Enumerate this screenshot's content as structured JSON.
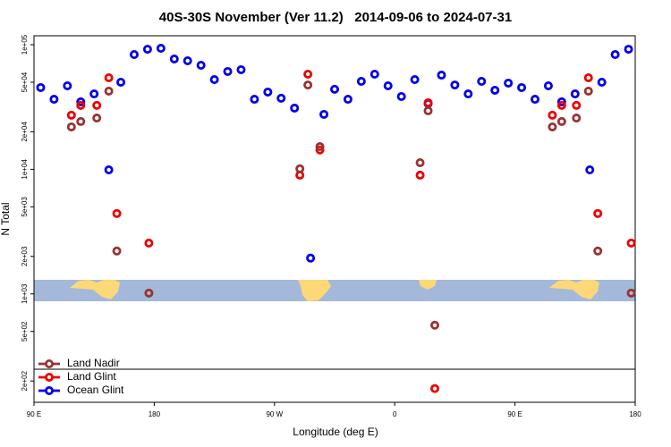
{
  "chart_data": {
    "type": "scatter",
    "title": "40S-30S November (Ver 11.2)   2014-09-06 to 2024-07-31",
    "x_label": "Longitude (deg E)",
    "y_label": "N Total",
    "log_y": true,
    "xlim": [
      90,
      540
    ],
    "xticks": [
      {
        "value": 90,
        "label": "90 E"
      },
      {
        "value": 180,
        "label": "180"
      },
      {
        "value": 270,
        "label": "90 W"
      },
      {
        "value": 360,
        "label": "0"
      },
      {
        "value": 450,
        "label": "90 E"
      },
      {
        "value": 540,
        "label": "180"
      }
    ],
    "ylim": [
      135,
      118000
    ],
    "yticks": [
      {
        "value": 100000,
        "label": "1e+05"
      },
      {
        "value": 50000,
        "label": "5e+04"
      },
      {
        "value": 20000,
        "label": "2e+04"
      },
      {
        "value": 10000,
        "label": "1e+04"
      },
      {
        "value": 5000,
        "label": "5e+03"
      },
      {
        "value": 2000,
        "label": "2e+03"
      },
      {
        "value": 1000,
        "label": "1e+03"
      },
      {
        "value": 500,
        "label": "5e+02"
      },
      {
        "value": 200,
        "label": "2e+02"
      }
    ],
    "legend": "bottom-left",
    "series": [
      {
        "name": "Land Nadir",
        "color": "#993333",
        "x": [
          118,
          125,
          137,
          146,
          152,
          176,
          289,
          295,
          304,
          379,
          385,
          390,
          478,
          485,
          496,
          505,
          512,
          537
        ],
        "values": [
          21900,
          24200,
          25800,
          42400,
          2210,
          1016,
          10100,
          47500,
          15200,
          11300,
          29500,
          561,
          21900,
          24200,
          25800,
          42400,
          2210,
          1016
        ]
      },
      {
        "name": "Land Glint",
        "color": "#ee0000",
        "x": [
          118,
          125,
          137,
          146,
          152,
          176,
          289,
          295,
          304,
          379,
          385,
          390,
          478,
          485,
          496,
          505,
          512,
          537
        ],
        "values": [
          27200,
          32600,
          32600,
          54300,
          4420,
          2560,
          8980,
          58000,
          14300,
          8980,
          34200,
          174,
          27200,
          32600,
          32600,
          54300,
          4420,
          2560
        ]
      },
      {
        "name": "Ocean Glint",
        "color": "#0000ee",
        "x": [
          95,
          105,
          115,
          125,
          135,
          146,
          155,
          165,
          175,
          185,
          195,
          205,
          215,
          225,
          235,
          245,
          255,
          265,
          275,
          285,
          297,
          307,
          315,
          325,
          335,
          345,
          355,
          365,
          375,
          385,
          395,
          405,
          415,
          425,
          435,
          445,
          455,
          465,
          475,
          485,
          495,
          506,
          515,
          525,
          535
        ],
        "values": [
          45300,
          36500,
          46800,
          34800,
          40300,
          9900,
          50000,
          83400,
          92000,
          93600,
          76800,
          74300,
          68400,
          52500,
          61000,
          63000,
          36500,
          41700,
          37200,
          31000,
          1940,
          27600,
          43900,
          36500,
          50800,
          58000,
          46800,
          38400,
          52500,
          33700,
          57000,
          47500,
          40300,
          50800,
          43100,
          49200,
          45300,
          36500,
          46800,
          34800,
          40300,
          9900,
          50000,
          83400,
          92000
        ]
      }
    ]
  }
}
